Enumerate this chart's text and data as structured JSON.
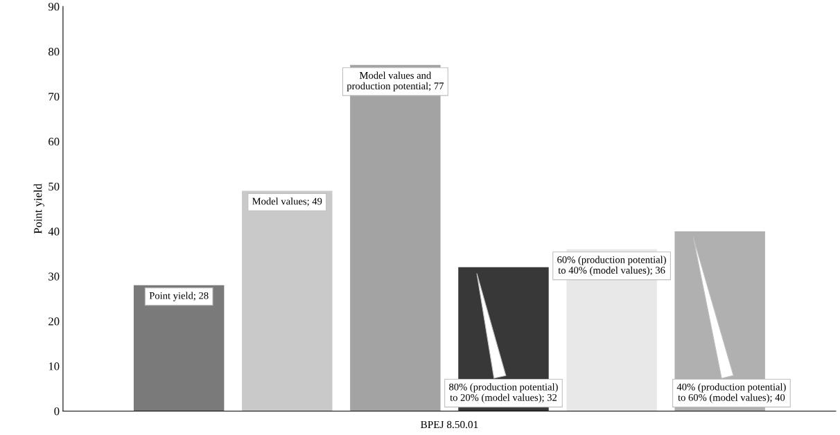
{
  "chart_data": {
    "type": "bar",
    "categories": [
      "BPEJ 8.50.01"
    ],
    "series": [
      {
        "color": "#7a7a7a",
        "values": [
          28
        ],
        "value_labels": [
          "Point yield; 28"
        ]
      },
      {
        "color": "#c9c9c9",
        "values": [
          49
        ],
        "value_labels": [
          "Model values; 49"
        ]
      },
      {
        "color": "#a3a3a3",
        "values": [
          77
        ],
        "value_labels": [
          "Model values and production potential; 77"
        ]
      },
      {
        "color": "#383838",
        "values": [
          32
        ],
        "value_labels": [
          "80% (production potential) to 20% (model values); 32"
        ]
      },
      {
        "color": "#e8e8e8",
        "values": [
          36
        ],
        "value_labels": [
          "60% (production potential) to 40% (model values); 36"
        ]
      },
      {
        "color": "#b0b0b0",
        "values": [
          40
        ],
        "value_labels": [
          "40% (production potential) to 60% (model values); 40"
        ]
      }
    ],
    "ylabel": "Point yield",
    "ylim": [
      0,
      90
    ],
    "yticks": [
      0,
      10,
      20,
      30,
      40,
      50,
      60,
      70,
      80,
      90
    ],
    "grid": false,
    "legend": false
  }
}
